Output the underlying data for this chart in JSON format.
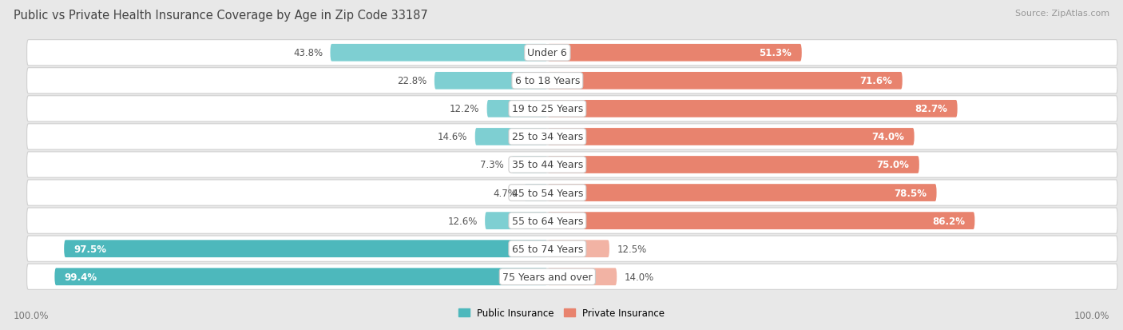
{
  "title": "Public vs Private Health Insurance Coverage by Age in Zip Code 33187",
  "source": "Source: ZipAtlas.com",
  "categories": [
    "Under 6",
    "6 to 18 Years",
    "19 to 25 Years",
    "25 to 34 Years",
    "35 to 44 Years",
    "45 to 54 Years",
    "55 to 64 Years",
    "65 to 74 Years",
    "75 Years and over"
  ],
  "public_values": [
    43.8,
    22.8,
    12.2,
    14.6,
    7.3,
    4.7,
    12.6,
    97.5,
    99.4
  ],
  "private_values": [
    51.3,
    71.6,
    82.7,
    74.0,
    75.0,
    78.5,
    86.2,
    12.5,
    14.0
  ],
  "public_color_dark": "#4db8bc",
  "private_color_dark": "#e8836e",
  "public_color_light": "#7ecfd2",
  "private_color_light": "#f2b3a4",
  "bg_color": "#e8e8e8",
  "row_bg_color": "#ffffff",
  "row_border_color": "#d0d0d0",
  "bar_height": 0.62,
  "axis_label_left": "100.0%",
  "axis_label_right": "100.0%",
  "legend_public": "Public Insurance",
  "legend_private": "Private Insurance",
  "title_fontsize": 10.5,
  "source_fontsize": 8,
  "label_fontsize": 8.5,
  "category_fontsize": 9,
  "axis_fontsize": 8.5,
  "xlim": 100
}
